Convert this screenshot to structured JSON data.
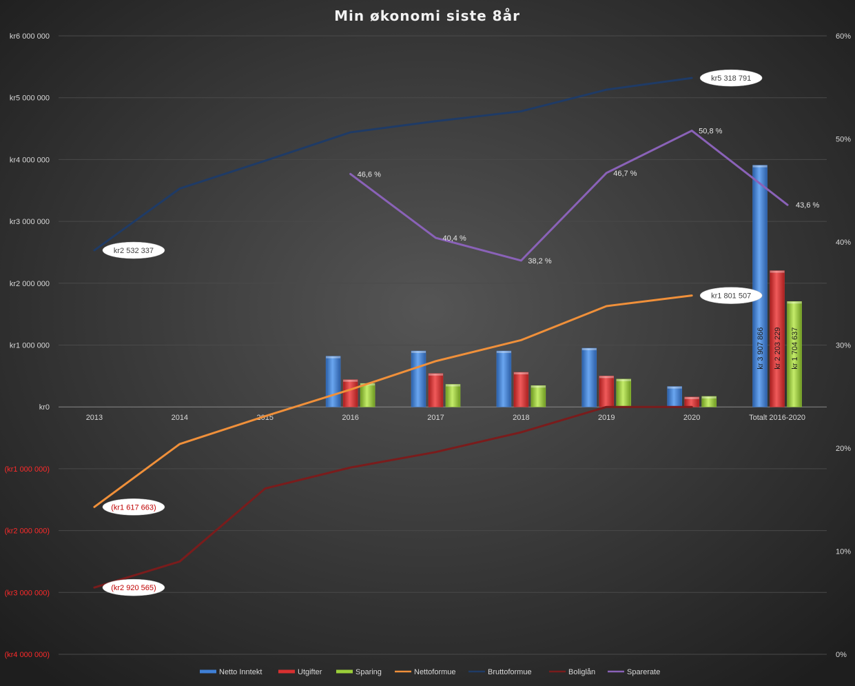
{
  "chart_data": {
    "type": "bar",
    "title": "Min økonomi  siste  8år",
    "categories": [
      "2013",
      "2014",
      "2015",
      "2016",
      "2017",
      "2018",
      "2019",
      "2020",
      "Totalt 2016-2020"
    ],
    "y_left": {
      "ylim": [
        -4000000,
        6000000
      ],
      "ticks": [
        6000000,
        5000000,
        4000000,
        3000000,
        2000000,
        1000000,
        0,
        -1000000,
        -2000000,
        -3000000,
        -4000000
      ],
      "tick_labels": [
        "kr6 000 000",
        "kr5 000 000",
        "kr4 000 000",
        "kr3 000 000",
        "kr2 000 000",
        "kr1 000 000",
        "kr0",
        "(kr1 000 000)",
        "(kr2 000 000)",
        "(kr3 000 000)",
        "(kr4 000 000)"
      ]
    },
    "y_right": {
      "ylim": [
        0,
        60
      ],
      "ticks": [
        60,
        50,
        40,
        30,
        20,
        10,
        0
      ],
      "tick_labels": [
        "60%",
        "50%",
        "40%",
        "30%",
        "20%",
        "10%",
        "0%"
      ]
    },
    "grid": true,
    "legend_position": "bottom",
    "bar_series": [
      {
        "name": "Netto Inntekt",
        "color": "#3f7fd6",
        "values": [
          null,
          null,
          null,
          820000,
          905000,
          905000,
          950000,
          330000,
          3907866
        ]
      },
      {
        "name": "Utgifter",
        "color": "#d93030",
        "values": [
          null,
          null,
          null,
          440000,
          540000,
          560000,
          500000,
          160000,
          2203229
        ]
      },
      {
        "name": "Sparing",
        "color": "#9bcf3a",
        "values": [
          null,
          null,
          null,
          380000,
          365000,
          345000,
          450000,
          170000,
          1704637
        ]
      }
    ],
    "line_series": [
      {
        "name": "Nettoformue",
        "color": "#f0903a",
        "axis": "left",
        "values": [
          -1617663,
          -600000,
          -150000,
          280000,
          740000,
          1080000,
          1630000,
          1801507,
          null
        ]
      },
      {
        "name": "Bruttoformue",
        "color": "#1f3b66",
        "axis": "left",
        "values": [
          2532337,
          3530000,
          3980000,
          4440000,
          4620000,
          4780000,
          5130000,
          5318791,
          null
        ]
      },
      {
        "name": "Boliglån",
        "color": "#7a1c1c",
        "axis": "left",
        "values": [
          -2920565,
          -2500000,
          -1320000,
          -980000,
          -730000,
          -410000,
          0,
          0,
          null
        ]
      },
      {
        "name": "Sparerate",
        "color": "#8a62b8",
        "axis": "right",
        "values": [
          null,
          null,
          null,
          46.6,
          40.4,
          38.2,
          46.7,
          50.8,
          43.6
        ]
      }
    ],
    "bubble_labels": [
      {
        "series": "Bruttoformue",
        "index": 0,
        "text": "kr2 532 337"
      },
      {
        "series": "Bruttoformue",
        "index": 7,
        "text": "kr5 318 791"
      },
      {
        "series": "Nettoformue",
        "index": 0,
        "text": "(kr1 617 663)"
      },
      {
        "series": "Nettoformue",
        "index": 7,
        "text": "kr1 801 507"
      },
      {
        "series": "Boliglån",
        "index": 0,
        "text": "(kr2 920 565)"
      }
    ],
    "percent_labels": [
      "",
      "",
      "",
      "46,6 %",
      "40,4 %",
      "38,2 %",
      "46,7 %",
      "50,8 %",
      "43,6 %"
    ],
    "total_bar_labels": [
      "kr 3 907 866",
      "kr 2 203 229",
      "kr 1 704 637"
    ]
  }
}
